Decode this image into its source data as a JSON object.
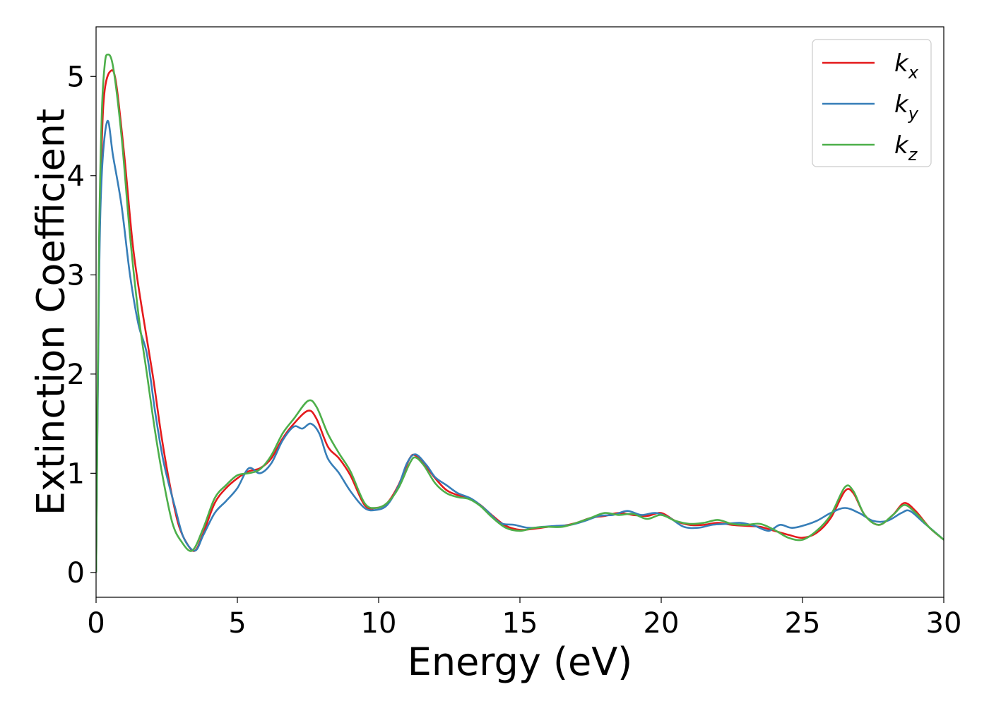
{
  "chart_data": {
    "type": "line",
    "xlabel": "Energy (eV)",
    "ylabel": "Extinction Coefficient",
    "xlim": [
      0,
      30
    ],
    "ylim": [
      -0.25,
      5.5
    ],
    "xticks": [
      "0",
      "5",
      "10",
      "15",
      "20",
      "25",
      "30"
    ],
    "yticks": [
      "0",
      "1",
      "2",
      "3",
      "4",
      "5"
    ],
    "grid": false,
    "legend_position": "top-right",
    "series": [
      {
        "name": "k",
        "subscript": "x",
        "color": "#e41a1c",
        "points": [
          [
            0,
            0
          ],
          [
            0.1,
            3.0
          ],
          [
            0.2,
            4.3
          ],
          [
            0.3,
            4.85
          ],
          [
            0.5,
            5.05
          ],
          [
            0.7,
            4.95
          ],
          [
            1.0,
            4.2
          ],
          [
            1.3,
            3.3
          ],
          [
            1.6,
            2.7
          ],
          [
            2.0,
            2.0
          ],
          [
            2.3,
            1.4
          ],
          [
            2.6,
            0.9
          ],
          [
            2.9,
            0.5
          ],
          [
            3.2,
            0.3
          ],
          [
            3.5,
            0.22
          ],
          [
            3.8,
            0.4
          ],
          [
            4.2,
            0.7
          ],
          [
            4.6,
            0.85
          ],
          [
            5.0,
            0.95
          ],
          [
            5.4,
            1.02
          ],
          [
            5.8,
            1.05
          ],
          [
            6.2,
            1.15
          ],
          [
            6.6,
            1.35
          ],
          [
            7.0,
            1.5
          ],
          [
            7.5,
            1.63
          ],
          [
            7.8,
            1.55
          ],
          [
            8.2,
            1.27
          ],
          [
            8.6,
            1.15
          ],
          [
            9.0,
            0.98
          ],
          [
            9.5,
            0.68
          ],
          [
            9.9,
            0.65
          ],
          [
            10.3,
            0.7
          ],
          [
            10.7,
            0.88
          ],
          [
            11.1,
            1.15
          ],
          [
            11.3,
            1.18
          ],
          [
            11.6,
            1.1
          ],
          [
            12.0,
            0.95
          ],
          [
            12.4,
            0.83
          ],
          [
            12.8,
            0.78
          ],
          [
            13.2,
            0.75
          ],
          [
            13.6,
            0.68
          ],
          [
            14.0,
            0.58
          ],
          [
            14.5,
            0.47
          ],
          [
            15.0,
            0.43
          ],
          [
            15.5,
            0.44
          ],
          [
            16.0,
            0.46
          ],
          [
            16.5,
            0.47
          ],
          [
            17.0,
            0.5
          ],
          [
            17.5,
            0.55
          ],
          [
            18.0,
            0.57
          ],
          [
            18.5,
            0.6
          ],
          [
            19.0,
            0.58
          ],
          [
            19.5,
            0.57
          ],
          [
            20.0,
            0.6
          ],
          [
            20.5,
            0.52
          ],
          [
            21.0,
            0.48
          ],
          [
            21.5,
            0.48
          ],
          [
            22.0,
            0.5
          ],
          [
            22.5,
            0.48
          ],
          [
            23.0,
            0.47
          ],
          [
            23.5,
            0.46
          ],
          [
            24.0,
            0.42
          ],
          [
            24.5,
            0.38
          ],
          [
            25.0,
            0.35
          ],
          [
            25.5,
            0.4
          ],
          [
            26.0,
            0.55
          ],
          [
            26.5,
            0.82
          ],
          [
            26.8,
            0.8
          ],
          [
            27.2,
            0.58
          ],
          [
            27.7,
            0.48
          ],
          [
            28.2,
            0.58
          ],
          [
            28.6,
            0.7
          ],
          [
            29.0,
            0.62
          ],
          [
            29.5,
            0.45
          ],
          [
            30.0,
            0.33
          ]
        ]
      },
      {
        "name": "k",
        "subscript": "y",
        "color": "#377eb8",
        "points": [
          [
            0,
            0
          ],
          [
            0.1,
            2.8
          ],
          [
            0.2,
            4.0
          ],
          [
            0.4,
            4.55
          ],
          [
            0.6,
            4.2
          ],
          [
            0.9,
            3.7
          ],
          [
            1.2,
            3.0
          ],
          [
            1.5,
            2.5
          ],
          [
            1.8,
            2.2
          ],
          [
            2.1,
            1.6
          ],
          [
            2.4,
            1.1
          ],
          [
            2.8,
            0.65
          ],
          [
            3.1,
            0.35
          ],
          [
            3.5,
            0.22
          ],
          [
            3.8,
            0.38
          ],
          [
            4.2,
            0.6
          ],
          [
            4.6,
            0.72
          ],
          [
            5.0,
            0.85
          ],
          [
            5.4,
            1.05
          ],
          [
            5.8,
            1.0
          ],
          [
            6.2,
            1.1
          ],
          [
            6.6,
            1.33
          ],
          [
            7.0,
            1.47
          ],
          [
            7.3,
            1.45
          ],
          [
            7.6,
            1.5
          ],
          [
            7.9,
            1.4
          ],
          [
            8.2,
            1.15
          ],
          [
            8.6,
            1.0
          ],
          [
            9.0,
            0.82
          ],
          [
            9.5,
            0.65
          ],
          [
            9.9,
            0.63
          ],
          [
            10.3,
            0.68
          ],
          [
            10.7,
            0.87
          ],
          [
            11.0,
            1.1
          ],
          [
            11.3,
            1.19
          ],
          [
            11.7,
            1.08
          ],
          [
            12.0,
            0.96
          ],
          [
            12.4,
            0.88
          ],
          [
            12.8,
            0.8
          ],
          [
            13.3,
            0.74
          ],
          [
            13.8,
            0.63
          ],
          [
            14.3,
            0.5
          ],
          [
            14.8,
            0.48
          ],
          [
            15.3,
            0.45
          ],
          [
            15.8,
            0.46
          ],
          [
            16.3,
            0.47
          ],
          [
            16.8,
            0.48
          ],
          [
            17.3,
            0.52
          ],
          [
            17.8,
            0.57
          ],
          [
            18.3,
            0.58
          ],
          [
            18.8,
            0.62
          ],
          [
            19.3,
            0.58
          ],
          [
            19.8,
            0.6
          ],
          [
            20.3,
            0.55
          ],
          [
            20.8,
            0.46
          ],
          [
            21.3,
            0.45
          ],
          [
            21.8,
            0.48
          ],
          [
            22.3,
            0.49
          ],
          [
            22.8,
            0.5
          ],
          [
            23.3,
            0.47
          ],
          [
            23.8,
            0.42
          ],
          [
            24.2,
            0.48
          ],
          [
            24.6,
            0.45
          ],
          [
            25.0,
            0.47
          ],
          [
            25.5,
            0.52
          ],
          [
            26.0,
            0.6
          ],
          [
            26.5,
            0.65
          ],
          [
            27.0,
            0.6
          ],
          [
            27.5,
            0.52
          ],
          [
            28.0,
            0.52
          ],
          [
            28.5,
            0.6
          ],
          [
            28.8,
            0.62
          ],
          [
            29.3,
            0.5
          ],
          [
            30.0,
            0.33
          ]
        ]
      },
      {
        "name": "k",
        "subscript": "z",
        "color": "#4daf4a",
        "points": [
          [
            0,
            0
          ],
          [
            0.1,
            3.2
          ],
          [
            0.2,
            4.6
          ],
          [
            0.3,
            5.1
          ],
          [
            0.4,
            5.22
          ],
          [
            0.6,
            5.1
          ],
          [
            0.9,
            4.4
          ],
          [
            1.2,
            3.4
          ],
          [
            1.5,
            2.6
          ],
          [
            1.8,
            2.0
          ],
          [
            2.1,
            1.4
          ],
          [
            2.4,
            0.9
          ],
          [
            2.7,
            0.5
          ],
          [
            3.0,
            0.32
          ],
          [
            3.4,
            0.22
          ],
          [
            3.8,
            0.45
          ],
          [
            4.2,
            0.75
          ],
          [
            4.6,
            0.88
          ],
          [
            5.0,
            0.98
          ],
          [
            5.4,
            1.0
          ],
          [
            5.8,
            1.04
          ],
          [
            6.2,
            1.18
          ],
          [
            6.6,
            1.4
          ],
          [
            7.0,
            1.55
          ],
          [
            7.5,
            1.73
          ],
          [
            7.8,
            1.67
          ],
          [
            8.2,
            1.4
          ],
          [
            8.6,
            1.2
          ],
          [
            9.0,
            1.02
          ],
          [
            9.5,
            0.7
          ],
          [
            9.9,
            0.65
          ],
          [
            10.3,
            0.7
          ],
          [
            10.7,
            0.85
          ],
          [
            11.1,
            1.1
          ],
          [
            11.3,
            1.16
          ],
          [
            11.6,
            1.08
          ],
          [
            12.0,
            0.9
          ],
          [
            12.4,
            0.8
          ],
          [
            12.8,
            0.76
          ],
          [
            13.2,
            0.74
          ],
          [
            13.6,
            0.67
          ],
          [
            14.0,
            0.56
          ],
          [
            14.5,
            0.45
          ],
          [
            15.0,
            0.42
          ],
          [
            15.5,
            0.45
          ],
          [
            16.0,
            0.46
          ],
          [
            16.5,
            0.46
          ],
          [
            17.0,
            0.5
          ],
          [
            17.5,
            0.55
          ],
          [
            18.0,
            0.6
          ],
          [
            18.5,
            0.58
          ],
          [
            19.0,
            0.59
          ],
          [
            19.5,
            0.54
          ],
          [
            20.0,
            0.58
          ],
          [
            20.5,
            0.52
          ],
          [
            21.0,
            0.49
          ],
          [
            21.5,
            0.5
          ],
          [
            22.0,
            0.53
          ],
          [
            22.5,
            0.49
          ],
          [
            23.0,
            0.48
          ],
          [
            23.5,
            0.49
          ],
          [
            24.0,
            0.43
          ],
          [
            24.5,
            0.35
          ],
          [
            25.0,
            0.33
          ],
          [
            25.5,
            0.42
          ],
          [
            26.0,
            0.58
          ],
          [
            26.5,
            0.86
          ],
          [
            26.8,
            0.82
          ],
          [
            27.2,
            0.58
          ],
          [
            27.7,
            0.48
          ],
          [
            28.2,
            0.58
          ],
          [
            28.6,
            0.68
          ],
          [
            29.0,
            0.6
          ],
          [
            29.5,
            0.45
          ],
          [
            30.0,
            0.33
          ]
        ]
      }
    ]
  }
}
